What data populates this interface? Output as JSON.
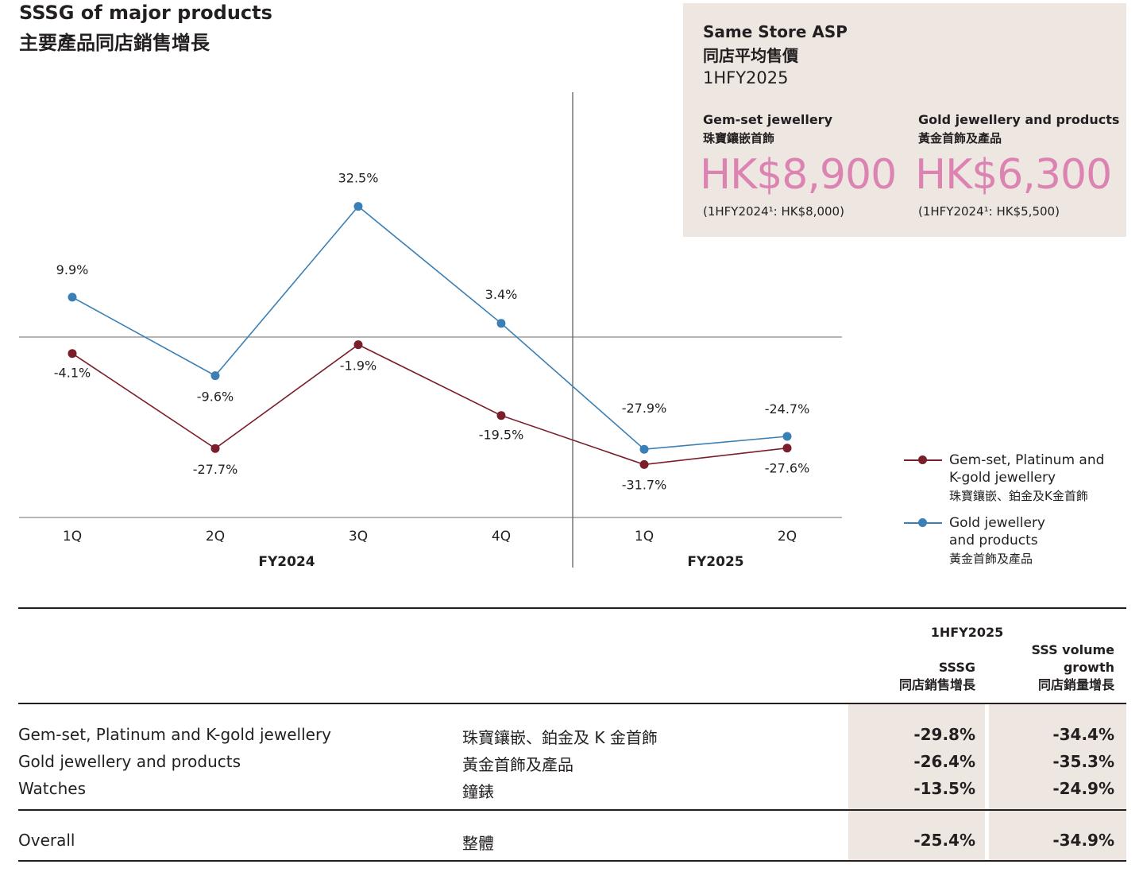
{
  "title": {
    "en": "SSSG of major products",
    "zh": "主要產品同店銷售增長"
  },
  "asp_panel": {
    "title_en": "Same Store ASP",
    "title_zh": "同店平均售價",
    "period": "1HFY2025",
    "items": [
      {
        "label_en": "Gem-set jewellery",
        "label_zh": "珠寶鑲嵌首飾",
        "value": "HK$8,900",
        "comparison": "(1HFY2024¹: HK$8,000)"
      },
      {
        "label_en": "Gold jewellery and products",
        "label_zh": "黃金首飾及產品",
        "value": "HK$6,300",
        "comparison": "(1HFY2024¹: HK$5,500)"
      }
    ],
    "value_color": "#dc83b2",
    "background_color": "#ede6e1"
  },
  "chart_data": {
    "type": "line",
    "title": "SSSG of major products",
    "categories": [
      "1Q",
      "2Q",
      "3Q",
      "4Q",
      "1Q",
      "2Q"
    ],
    "groups": [
      {
        "label": "FY2024",
        "categories": [
          "1Q",
          "2Q",
          "3Q",
          "4Q"
        ]
      },
      {
        "label": "FY2025",
        "categories": [
          "1Q",
          "2Q"
        ]
      }
    ],
    "series": [
      {
        "name": "Gem-set, Platinum and K-gold jewellery",
        "name_zh": "珠寶鑲嵌、鉑金及K金首飾",
        "color": "#7b1e2b",
        "values": [
          -4.1,
          -27.7,
          -1.9,
          -19.5,
          -31.7,
          -27.6
        ],
        "labels": [
          "-4.1%",
          "-27.7%",
          "-1.9%",
          "-19.5%",
          "-31.7%",
          "-27.6%"
        ]
      },
      {
        "name": "Gold jewellery and products",
        "name_zh": "黃金首飾及產品",
        "color": "#3a7fb5",
        "values": [
          9.9,
          -9.6,
          32.5,
          3.4,
          -27.9,
          -24.7
        ],
        "labels": [
          "9.9%",
          "-9.6%",
          "32.5%",
          "3.4%",
          "-27.9%",
          "-24.7%"
        ]
      }
    ],
    "zero_line": true,
    "legend_position": "right"
  },
  "legend": {
    "items": [
      {
        "label_en": "Gem-set, Platinum and K-gold jewellery",
        "label_en_line1": "Gem-set, Platinum and",
        "label_en_line2": "K-gold jewellery",
        "label_zh": "珠寶鑲嵌、鉑金及K金首飾"
      },
      {
        "label_en": "Gold jewellery and products",
        "label_en_line1": "Gold jewellery",
        "label_en_line2": "and products",
        "label_zh": "黃金首飾及產品"
      }
    ]
  },
  "table": {
    "period": "1HFY2025",
    "columns": [
      {
        "en": "SSSG",
        "zh": "同店銷售增長"
      },
      {
        "en_line1": "SSS volume",
        "en_line2": "growth",
        "en": "SSS volume growth",
        "zh": "同店銷量增長"
      }
    ],
    "rows": [
      {
        "en": "Gem-set, Platinum and K-gold jewellery",
        "zh": "珠寶鑲嵌、鉑金及 K 金首飾",
        "sssg": "-29.8%",
        "volume": "-34.4%"
      },
      {
        "en": "Gold jewellery and products",
        "zh": "黃金首飾及產品",
        "sssg": "-26.4%",
        "volume": "-35.3%"
      },
      {
        "en": "Watches",
        "zh": "鐘錶",
        "sssg": "-13.5%",
        "volume": "-24.9%"
      }
    ],
    "total": {
      "en": "Overall",
      "zh": "整體",
      "sssg": "-25.4%",
      "volume": "-34.9%"
    }
  }
}
